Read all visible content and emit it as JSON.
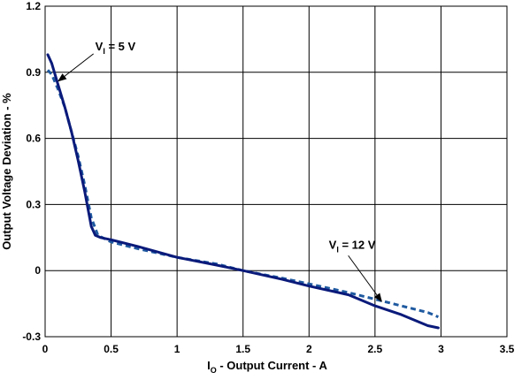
{
  "chart_data": {
    "type": "line",
    "title": "",
    "xlabel": {
      "sym": "I",
      "sub": "O",
      "rest": " - Output Current - A"
    },
    "ylabel": "Output Voltage Deviation - %",
    "xlim": [
      0,
      3.5
    ],
    "ylim": [
      -0.3,
      1.2
    ],
    "x_ticks": [
      0,
      0.5,
      1,
      1.5,
      2,
      2.5,
      3,
      3.5
    ],
    "x_tick_labels": [
      "0",
      "0.5",
      "1",
      "1.5",
      "2",
      "2.5",
      "3",
      "3.5"
    ],
    "y_ticks": [
      -0.3,
      0,
      0.3,
      0.6,
      0.9,
      1.2
    ],
    "y_tick_labels": [
      "-0.3",
      "0",
      "0.3",
      "0.6",
      "0.9",
      "1.2"
    ],
    "grid": true,
    "legend": "none",
    "series": [
      {
        "label": {
          "sym": "V",
          "sub": "I",
          "rest": " = 5 V"
        },
        "style": "solid",
        "color": "#0a1a7a",
        "x": [
          0.02,
          0.05,
          0.1,
          0.15,
          0.2,
          0.25,
          0.3,
          0.35,
          0.38,
          0.42,
          0.5,
          0.7,
          1.0,
          1.3,
          1.5,
          1.8,
          2.0,
          2.3,
          2.5,
          2.7,
          2.9,
          2.98
        ],
        "y": [
          0.98,
          0.94,
          0.84,
          0.74,
          0.63,
          0.5,
          0.36,
          0.2,
          0.16,
          0.15,
          0.14,
          0.11,
          0.06,
          0.025,
          0.0,
          -0.04,
          -0.07,
          -0.11,
          -0.16,
          -0.2,
          -0.25,
          -0.26
        ]
      },
      {
        "label": {
          "sym": "V",
          "sub": "I",
          "rest": " = 12 V"
        },
        "style": "dashed",
        "color": "#1f5aa0",
        "x": [
          0.02,
          0.05,
          0.1,
          0.15,
          0.2,
          0.25,
          0.3,
          0.35,
          0.4,
          0.5,
          0.7,
          1.0,
          1.3,
          1.5,
          1.8,
          2.0,
          2.3,
          2.5,
          2.7,
          2.9,
          2.98
        ],
        "y": [
          0.91,
          0.89,
          0.82,
          0.74,
          0.63,
          0.52,
          0.39,
          0.24,
          0.16,
          0.13,
          0.1,
          0.06,
          0.03,
          0.0,
          -0.035,
          -0.06,
          -0.1,
          -0.13,
          -0.16,
          -0.19,
          -0.21
        ]
      }
    ],
    "annotations": [
      {
        "series": 0,
        "text_at": [
          0.38,
          1.0
        ],
        "arrow_to": [
          0.1,
          0.86
        ]
      },
      {
        "series": 1,
        "text_at": [
          2.15,
          0.1
        ],
        "arrow_to": [
          2.55,
          -0.14
        ]
      }
    ],
    "colors": {
      "axis": "#000000",
      "grid": "#000000"
    }
  }
}
